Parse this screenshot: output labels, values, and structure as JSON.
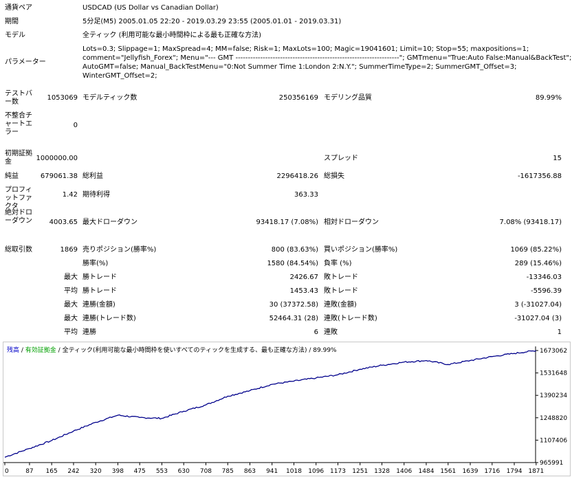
{
  "report": {
    "symbol_label": "通貨ペア",
    "symbol_value": "USDCAD (US Dollar vs Canadian Dollar)",
    "period_label": "期間",
    "period_value": "5分足(M5) 2005.01.05 22:20 - 2019.03.29 23:55 (2005.01.01 - 2019.03.31)",
    "model_label": "モデル",
    "model_value": "全ティック (利用可能な最小時間枠による最も正確な方法)",
    "params_label": "パラメーター",
    "params_lines": [
      "Lots=0.3; Slippage=1; MaxSpread=4; MM=false; Risk=1; MaxLots=100; Magic=19041601; Limit=10; Stop=55; maxpositions=1;",
      "comment=\"Jellyfish_Forex\"; Menu=\"--- GMT ------------------------------------------------------------------\"; GMTmenu=\"True:Auto False:Manual&BackTest\";",
      "AutoGMT=false; Manual_BackTestMenu=\"0:Not Summer Time 1:London 2:N.Y.\"; SummerTimeType=2; SummerGMT_Offset=3;",
      "WinterGMT_Offset=2;"
    ],
    "bars_label": "テストバー数",
    "bars_value": "1053069",
    "ticks_label": "モデルティック数",
    "ticks_value": "250356169",
    "quality_label": "モデリング品質",
    "quality_value": "89.99%",
    "mismatch_label": "不整合チャートエラー",
    "mismatch_value": "0",
    "deposit_label": "初期証拠金",
    "deposit_value": "1000000.00",
    "spread_label": "スプレッド",
    "spread_value": "15",
    "net_label": "純益",
    "net_value": "679061.38",
    "gross_profit_label": "総利益",
    "gross_profit_value": "2296418.26",
    "gross_loss_label": "総損失",
    "gross_loss_value": "-1617356.88",
    "pf_label": "プロフィットファクタ",
    "pf_value": "1.42",
    "expected_label": "期待利得",
    "expected_value": "363.33",
    "abs_dd_label": "絶対ドローダウン",
    "abs_dd_value": "4003.65",
    "max_dd_label": "最大ドローダウン",
    "max_dd_value": "93418.17 (7.08%)",
    "rel_dd_label": "相対ドローダウン",
    "rel_dd_value": "7.08% (93418.17)",
    "total_trades_label": "総取引数",
    "total_trades_value": "1869",
    "short_label": "売りポジション(勝率%)",
    "short_value": "800 (83.63%)",
    "long_label": "買いポジション(勝率%)",
    "long_value": "1069 (85.22%)",
    "win_pct_label": "勝率(%)",
    "win_pct_value": "1580 (84.54%)",
    "loss_pct_label": "負率 (%)",
    "loss_pct_value": "289 (15.46%)",
    "max_label": "最大",
    "avg_label": "平均",
    "largest_win_label": "勝トレード",
    "largest_win_value": "2426.67",
    "largest_loss_label": "敗トレード",
    "largest_loss_value": "-13346.03",
    "avg_win_label": "勝トレード",
    "avg_win_value": "1453.43",
    "avg_loss_label": "敗トレード",
    "avg_loss_value": "-5596.39",
    "max_cons_win_label": "連勝(金額)",
    "max_cons_win_value": "30 (37372.58)",
    "max_cons_loss_label": "連敗(金額)",
    "max_cons_loss_value": "3 (-31027.04)",
    "max_cons_profit_label": "連勝(トレード数)",
    "max_cons_profit_value": "52464.31 (28)",
    "max_cons_lossamt_label": "連敗(トレード数)",
    "max_cons_lossamt_value": "-31027.04 (3)",
    "avg_cons_win_label": "連勝",
    "avg_cons_win_value": "6",
    "avg_cons_loss_label": "連敗",
    "avg_cons_loss_value": "1"
  },
  "chart_legend": {
    "balance": "残高",
    "sep1": " / ",
    "equity": "有効証拠金",
    "sep2": " / ",
    "model": "全ティック(利用可能な最小時間枠を使いすべてのティックを生成する、最も正確な方法)",
    "sep3": " / ",
    "quality": "89.99%",
    "colors": {
      "balance": "#0000c8",
      "equity": "#00a000",
      "text": "#000000",
      "line": "#00008b"
    }
  },
  "chart_data": {
    "type": "line",
    "x": [
      0,
      87,
      165,
      242,
      320,
      398,
      475,
      553,
      630,
      708,
      785,
      863,
      941,
      1018,
      1096,
      1173,
      1251,
      1328,
      1406,
      1484,
      1561,
      1639,
      1716,
      1794,
      1871
    ],
    "xtick_labels": [
      "0",
      "87",
      "165",
      "242",
      "320",
      "398",
      "475",
      "553",
      "630",
      "708",
      "785",
      "863",
      "941",
      "1018",
      "1096",
      "1173",
      "1251",
      "1328",
      "1406",
      "1484",
      "1561",
      "1639",
      "1716",
      "1794",
      "1871"
    ],
    "ytick_labels": [
      "1673062",
      "1531648",
      "1390234",
      "1248820",
      "1107406",
      "965991"
    ],
    "ylim": [
      965991,
      1673062
    ],
    "xlim": [
      0,
      1869
    ],
    "series": [
      {
        "values": [
          1000000,
          1055000,
          1105000,
          1165000,
          1220000,
          1265000,
          1250000,
          1245000,
          1290000,
          1330000,
          1385000,
          1420000,
          1460000,
          1480000,
          1500000,
          1520000,
          1555000,
          1580000,
          1600000,
          1610000,
          1585000,
          1610000,
          1635000,
          1655000,
          1673062
        ]
      }
    ]
  }
}
